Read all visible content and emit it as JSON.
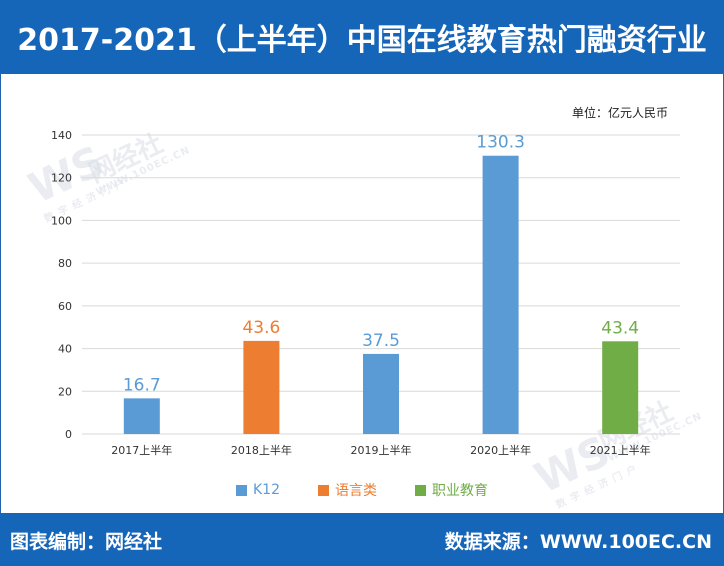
{
  "header": {
    "title": "2017-2021（上半年）中国在线教育热门融资行业"
  },
  "unit_label": "单位：亿元人民币",
  "watermark": {
    "logo": "WS",
    "brand": "网经社",
    "url": "WWW.100EC.CN",
    "tagline": "数 字 经 济 门 户"
  },
  "footer": {
    "left_label": "图表编制：",
    "left_value": "网经社",
    "right_label": "数据来源：",
    "right_value": "WWW.100EC.CN"
  },
  "colors": {
    "header": "#1565b9",
    "k12": "#5b9bd5",
    "language": "#ed7d31",
    "vocational": "#70ad47"
  },
  "legend": [
    {
      "name": "K12",
      "color": "#5b9bd5"
    },
    {
      "name": "语言类",
      "color": "#ed7d31"
    },
    {
      "name": "职业教育",
      "color": "#70ad47"
    }
  ],
  "chart_data": {
    "type": "bar",
    "title": "2017-2021（上半年）中国在线教育热门融资行业",
    "xlabel": "",
    "ylabel": "",
    "ylim": [
      0,
      140
    ],
    "yticks": [
      0,
      20,
      40,
      60,
      80,
      100,
      120,
      140
    ],
    "grid": true,
    "legend_position": "bottom",
    "categories": [
      "2017上半年",
      "2018上半年",
      "2019上半年",
      "2020上半年",
      "2021上半年"
    ],
    "values": [
      16.7,
      43.6,
      37.5,
      130.3,
      43.4
    ],
    "value_labels": [
      "16.7",
      "43.6",
      "37.5",
      "130.3",
      "43.4"
    ],
    "bar_series": [
      "K12",
      "语言类",
      "K12",
      "K12",
      "职业教育"
    ],
    "bar_colors": [
      "#5b9bd5",
      "#ed7d31",
      "#5b9bd5",
      "#5b9bd5",
      "#70ad47"
    ]
  }
}
